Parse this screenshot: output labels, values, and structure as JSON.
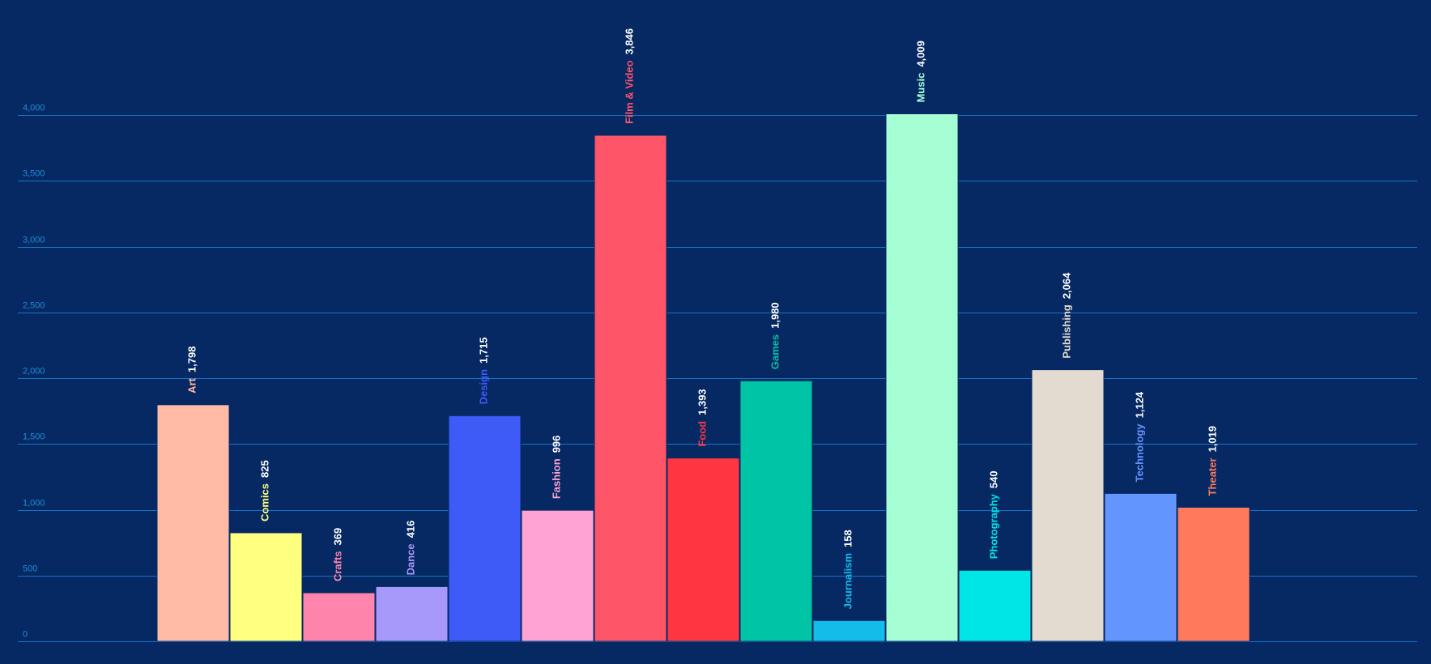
{
  "theme": {
    "background": "#062863",
    "grid": "#1677c8",
    "tick_label": "#1f8fd6",
    "value_label": "#ffffff",
    "bar_stroke": "#062863"
  },
  "chart_data": {
    "type": "bar",
    "title": "",
    "xlabel": "",
    "ylabel": "",
    "ylim": [
      0,
      4000
    ],
    "yticks": [
      0,
      500,
      1000,
      1500,
      2000,
      2500,
      3000,
      3500,
      4000
    ],
    "ytick_labels": [
      "0",
      "500",
      "1,000",
      "1,500",
      "2,000",
      "2,500",
      "3,000",
      "3,500",
      "4,000"
    ],
    "grid": true,
    "legend": "none",
    "categories": [
      "Art",
      "Comics",
      "Crafts",
      "Dance",
      "Design",
      "Fashion",
      "Film & Video",
      "Food",
      "Games",
      "Journalism",
      "Music",
      "Photography",
      "Publishing",
      "Technology",
      "Theater"
    ],
    "values": [
      1798,
      825,
      369,
      416,
      1715,
      996,
      3846,
      1393,
      1980,
      158,
      4009,
      540,
      2064,
      1124,
      1019
    ],
    "value_labels": [
      "1,798",
      "825",
      "369",
      "416",
      "1,715",
      "996",
      "3,846",
      "1,393",
      "1,980",
      "158",
      "4,009",
      "540",
      "2,064",
      "1,124",
      "1,019"
    ],
    "colors": [
      "#ffbba6",
      "#ffff80",
      "#ff85ad",
      "#a799fa",
      "#3e5af7",
      "#ffa3d4",
      "#ff5569",
      "#ff3641",
      "#00c4a6",
      "#14bcea",
      "#a6ffd4",
      "#00e5e5",
      "#e3dbd0",
      "#6395ff",
      "#ff7a5c"
    ],
    "label_colors": [
      "#ffbba6",
      "#ffff80",
      "#ff85ad",
      "#a799fa",
      "#3e5af7",
      "#ffa3d4",
      "#ff5569",
      "#ff3641",
      "#00c4a6",
      "#14bcea",
      "#a6ffd4",
      "#00e5e5",
      "#e3dbd0",
      "#6395ff",
      "#ff7a5c"
    ]
  }
}
